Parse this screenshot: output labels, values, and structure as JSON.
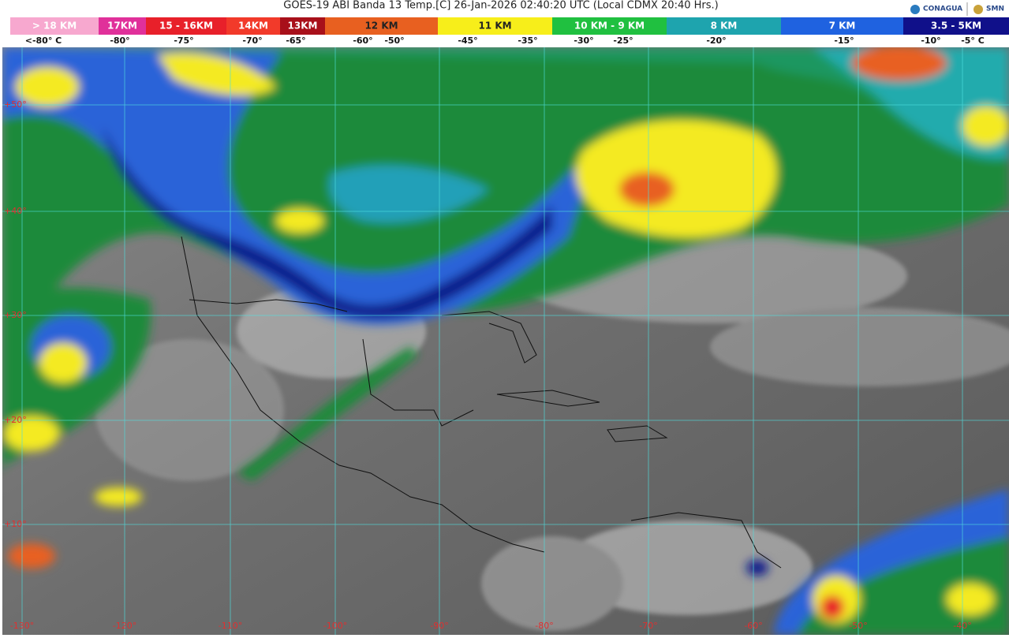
{
  "header": {
    "title": "GOES-19 ABI Banda 13 Temp.[C] 26-Jan-2026 02:40:20 UTC (Local CDMX  20:40 Hrs.)",
    "logo_left": "CONAGUA",
    "logo_right": "SMN"
  },
  "legend": {
    "bands": [
      "> 18 KM",
      "17KM",
      "15 - 16KM",
      "14KM",
      "13KM",
      "12 KM",
      "11 KM",
      "10 KM - 9 KM",
      "8 KM",
      "7 KM",
      "3.5 - 5KM"
    ],
    "temps": [
      "<-80° C",
      "-80°",
      "-75°",
      "-70°",
      "-65°",
      "-60°",
      "-50°",
      "-45°",
      "-35°",
      "-30°",
      "-25°",
      "-20°",
      "-15°",
      "-10°",
      "-5° C"
    ]
  },
  "map": {
    "lat_labels": [
      "+50°",
      "+40°",
      "+30°",
      "+20°",
      "+10°"
    ],
    "lon_labels": [
      "-130°",
      "-120°",
      "-110°",
      "-100°",
      "-90°",
      "-80°",
      "-70°",
      "-60°",
      "-50°",
      "-40°"
    ]
  }
}
